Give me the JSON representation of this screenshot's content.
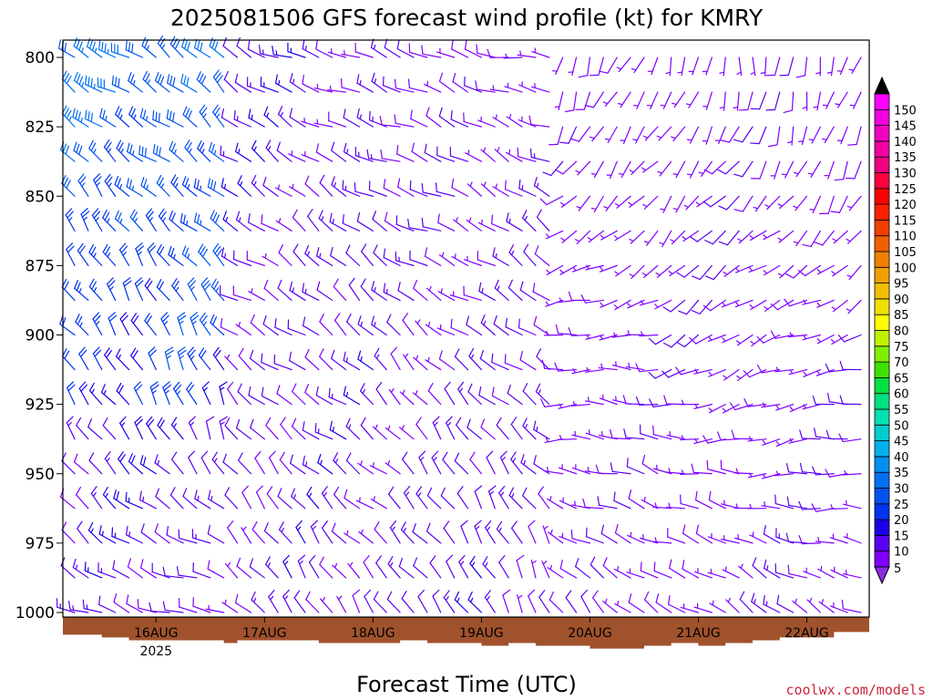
{
  "chart_data": {
    "type": "wind-barb-profile",
    "title": "2025081506 GFS forecast wind profile (kt) for KMRY",
    "xlabel": "Forecast Time (UTC)",
    "ylabel": "",
    "credit": "coolwx.com/models",
    "y_axis": {
      "range": [
        1012,
        795
      ],
      "ticks": [
        {
          "value": 800,
          "label": "800"
        },
        {
          "value": 825,
          "label": "825"
        },
        {
          "value": 850,
          "label": "850"
        },
        {
          "value": 875,
          "label": "875"
        },
        {
          "value": 900,
          "label": "900"
        },
        {
          "value": 925,
          "label": "925"
        },
        {
          "value": 950,
          "label": "950"
        },
        {
          "value": 975,
          "label": "975"
        },
        {
          "value": 1000,
          "label": "1000"
        }
      ]
    },
    "x_axis": {
      "range_hours_from_init": [
        0,
        174
      ],
      "ticks": [
        {
          "label": "16AUG",
          "sublabel": "2025",
          "hour": 18
        },
        {
          "label": "17AUG",
          "sublabel": "",
          "hour": 42
        },
        {
          "label": "18AUG",
          "sublabel": "",
          "hour": 66
        },
        {
          "label": "19AUG",
          "sublabel": "",
          "hour": 90
        },
        {
          "label": "20AUG",
          "sublabel": "",
          "hour": 114
        },
        {
          "label": "21AUG",
          "sublabel": "",
          "hour": 138
        },
        {
          "label": "22AUG",
          "sublabel": "",
          "hour": 162
        }
      ]
    },
    "pressure_levels": [
      800,
      812.5,
      825,
      837.5,
      850,
      862.5,
      875,
      887.5,
      900,
      912.5,
      925,
      937.5,
      950,
      962.5,
      975,
      987.5,
      1000
    ],
    "time_step_hours": 3,
    "colorbar": {
      "levels": [
        5,
        10,
        15,
        20,
        25,
        30,
        35,
        40,
        45,
        50,
        55,
        60,
        65,
        70,
        75,
        80,
        85,
        90,
        95,
        100,
        105,
        110,
        115,
        120,
        125,
        130,
        135,
        140,
        145,
        150
      ],
      "colors": [
        "#7f00ff",
        "#5a00f0",
        "#1a00e8",
        "#0033ee",
        "#0052f0",
        "#0070f0",
        "#0090f0",
        "#00b0ee",
        "#00cccc",
        "#00e0b0",
        "#00e080",
        "#00e040",
        "#40e000",
        "#80ee00",
        "#c0f000",
        "#ffff00",
        "#f0e000",
        "#f0c000",
        "#f0a000",
        "#f08000",
        "#f06000",
        "#f04000",
        "#ff2000",
        "#ff0000",
        "#ff0040",
        "#f00080",
        "#f000a0",
        "#f000c0",
        "#f000e0",
        "#ff00ff"
      ],
      "arrow_bottom_color": "#8a2be2",
      "arrow_top_color": "#000000"
    },
    "surface_pressure_hpa": [
      [
        0,
        1008
      ],
      [
        6,
        1009
      ],
      [
        12,
        1010
      ],
      [
        18,
        1010
      ],
      [
        24,
        1010
      ],
      [
        30,
        1010
      ],
      [
        33,
        1011
      ],
      [
        36,
        1010
      ],
      [
        42,
        1010
      ],
      [
        48,
        1010
      ],
      [
        54,
        1011
      ],
      [
        60,
        1011
      ],
      [
        66,
        1011
      ],
      [
        72,
        1010
      ],
      [
        78,
        1011
      ],
      [
        84,
        1011
      ],
      [
        90,
        1012
      ],
      [
        96,
        1011
      ],
      [
        102,
        1012
      ],
      [
        108,
        1012
      ],
      [
        114,
        1013
      ],
      [
        120,
        1013
      ],
      [
        126,
        1012
      ],
      [
        132,
        1011
      ],
      [
        138,
        1012
      ],
      [
        144,
        1011
      ],
      [
        150,
        1010
      ],
      [
        156,
        1009
      ],
      [
        162,
        1009
      ],
      [
        168,
        1007
      ],
      [
        174,
        1007
      ]
    ],
    "wind_regimes": [
      {
        "t_start": 0,
        "t_end": 36,
        "p_top": 800,
        "p_bottom": 925,
        "dir_top": 305,
        "dir_bottom": 330,
        "spd_top": 30,
        "spd_bottom": 20
      },
      {
        "t_start": 0,
        "t_end": 36,
        "p_top": 937.5,
        "p_bottom": 1000,
        "dir_top": 330,
        "dir_bottom": 285,
        "spd_top": 15,
        "spd_bottom": 10
      },
      {
        "t_start": 36,
        "t_end": 72,
        "p_top": 800,
        "p_bottom": 1000,
        "dir_top": 295,
        "dir_bottom": 320,
        "spd_top": 12,
        "spd_bottom": 10
      },
      {
        "t_start": 72,
        "t_end": 108,
        "p_top": 800,
        "p_bottom": 1000,
        "dir_top": 285,
        "dir_bottom": 330,
        "spd_top": 8,
        "spd_bottom": 12
      },
      {
        "t_start": 108,
        "t_end": 132,
        "p_top": 800,
        "p_bottom": 1000,
        "dir_top": 200,
        "dir_bottom": 315,
        "spd_top": 5,
        "spd_bottom": 8
      },
      {
        "t_start": 132,
        "t_end": 174,
        "p_top": 800,
        "p_bottom": 1000,
        "dir_top": 190,
        "dir_bottom": 300,
        "spd_top": 6,
        "spd_bottom": 8
      }
    ]
  }
}
